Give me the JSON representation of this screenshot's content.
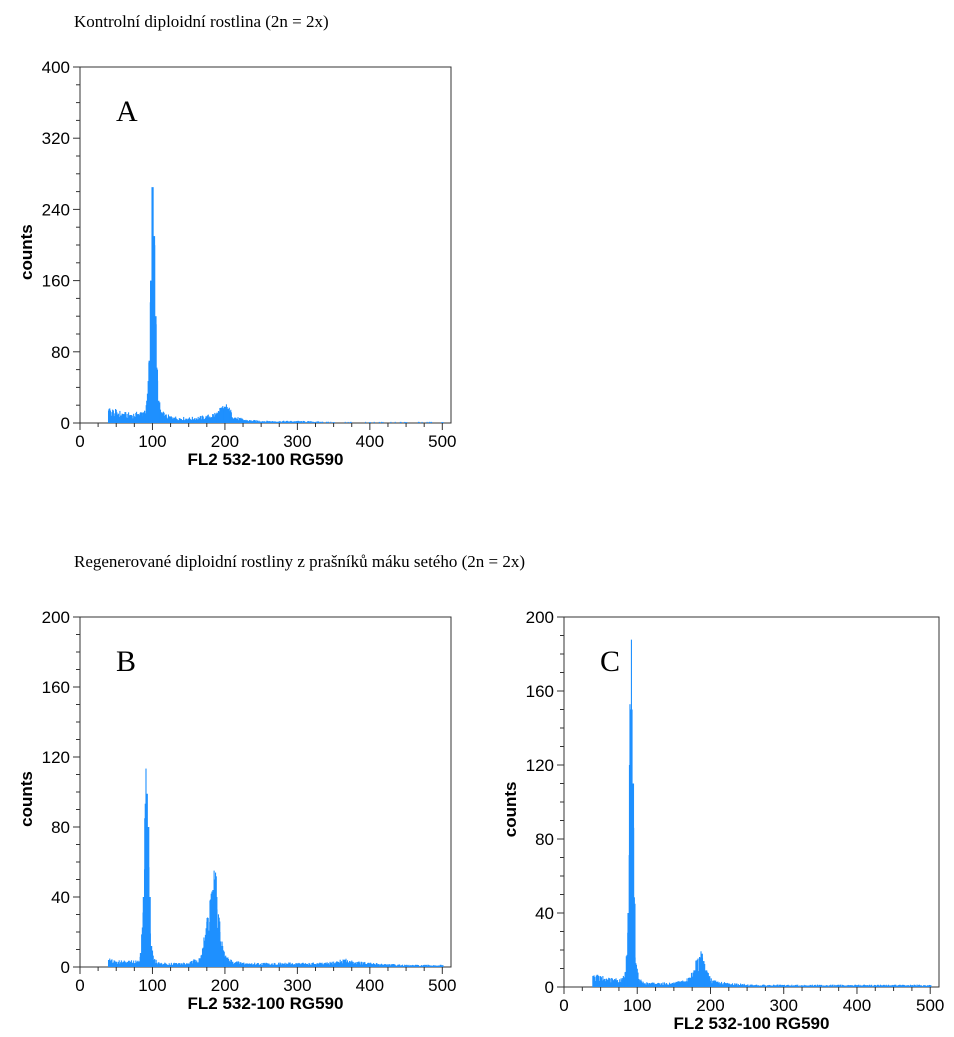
{
  "captions": {
    "top": "Kontrolní diploidní rostlina (2n = 2x)",
    "bottom": "Regenerované diploidní rostliny z prašníků máku setého (2n = 2x)"
  },
  "chart_data": [
    {
      "type": "bar",
      "panel_letter": "A",
      "xlabel": "FL2  532-100 RG590",
      "ylabel": "counts",
      "xlim": [
        0,
        512
      ],
      "ylim": [
        0,
        400
      ],
      "x_ticks": [
        0,
        100,
        200,
        300,
        400,
        500
      ],
      "y_ticks": [
        0,
        80,
        160,
        240,
        320,
        400
      ],
      "bar_color": "#1e90ff",
      "series": [
        {
          "x": [
            40,
            50,
            60,
            70,
            80,
            88,
            92,
            96,
            98,
            100,
            102,
            104,
            106,
            108,
            112,
            118,
            130,
            150,
            175,
            190,
            196,
            200,
            204,
            208,
            214,
            230,
            260,
            300,
            350,
            400,
            450,
            500
          ],
          "values": [
            14,
            12,
            10,
            9,
            10,
            12,
            20,
            70,
            160,
            265,
            210,
            120,
            60,
            25,
            12,
            8,
            6,
            5,
            7,
            11,
            16,
            18,
            16,
            12,
            6,
            3,
            2,
            2,
            1,
            1,
            1,
            1
          ]
        }
      ]
    },
    {
      "type": "bar",
      "panel_letter": "B",
      "xlabel": "FL2  532-100 RG590",
      "ylabel": "counts",
      "xlim": [
        0,
        512
      ],
      "ylim": [
        0,
        200
      ],
      "x_ticks": [
        0,
        100,
        200,
        300,
        400,
        500
      ],
      "y_ticks": [
        0,
        40,
        80,
        120,
        160,
        200
      ],
      "bar_color": "#1e90ff",
      "series": [
        {
          "x": [
            40,
            50,
            60,
            70,
            80,
            84,
            88,
            90,
            92,
            94,
            96,
            98,
            102,
            110,
            130,
            150,
            165,
            172,
            176,
            180,
            184,
            186,
            188,
            192,
            196,
            200,
            210,
            230,
            260,
            300,
            340,
            355,
            365,
            375,
            400,
            450,
            500
          ],
          "values": [
            4,
            3,
            3,
            3,
            3,
            8,
            40,
            85,
            99,
            80,
            40,
            12,
            4,
            2,
            2,
            2,
            5,
            15,
            28,
            38,
            44,
            50,
            40,
            26,
            12,
            6,
            3,
            2,
            2,
            2,
            2,
            3,
            4,
            3,
            2,
            1,
            1
          ]
        }
      ]
    },
    {
      "type": "bar",
      "panel_letter": "C",
      "xlabel": "FL2  532-100 RG590",
      "ylabel": "counts",
      "xlim": [
        0,
        512
      ],
      "ylim": [
        0,
        200
      ],
      "x_ticks": [
        0,
        100,
        200,
        300,
        400,
        500
      ],
      "y_ticks": [
        0,
        40,
        80,
        120,
        160,
        200
      ],
      "bar_color": "#1e90ff",
      "series": [
        {
          "x": [
            40,
            50,
            60,
            70,
            80,
            84,
            88,
            90,
            92,
            94,
            96,
            98,
            102,
            110,
            130,
            150,
            165,
            172,
            178,
            182,
            186,
            188,
            190,
            194,
            198,
            204,
            220,
            260,
            300,
            350,
            400,
            450,
            500
          ],
          "values": [
            6,
            5,
            4,
            4,
            4,
            8,
            40,
            120,
            150,
            110,
            45,
            12,
            4,
            2,
            2,
            2,
            3,
            5,
            9,
            13,
            16,
            18,
            14,
            9,
            5,
            3,
            2,
            1,
            1,
            1,
            1,
            1,
            1
          ]
        }
      ]
    }
  ]
}
